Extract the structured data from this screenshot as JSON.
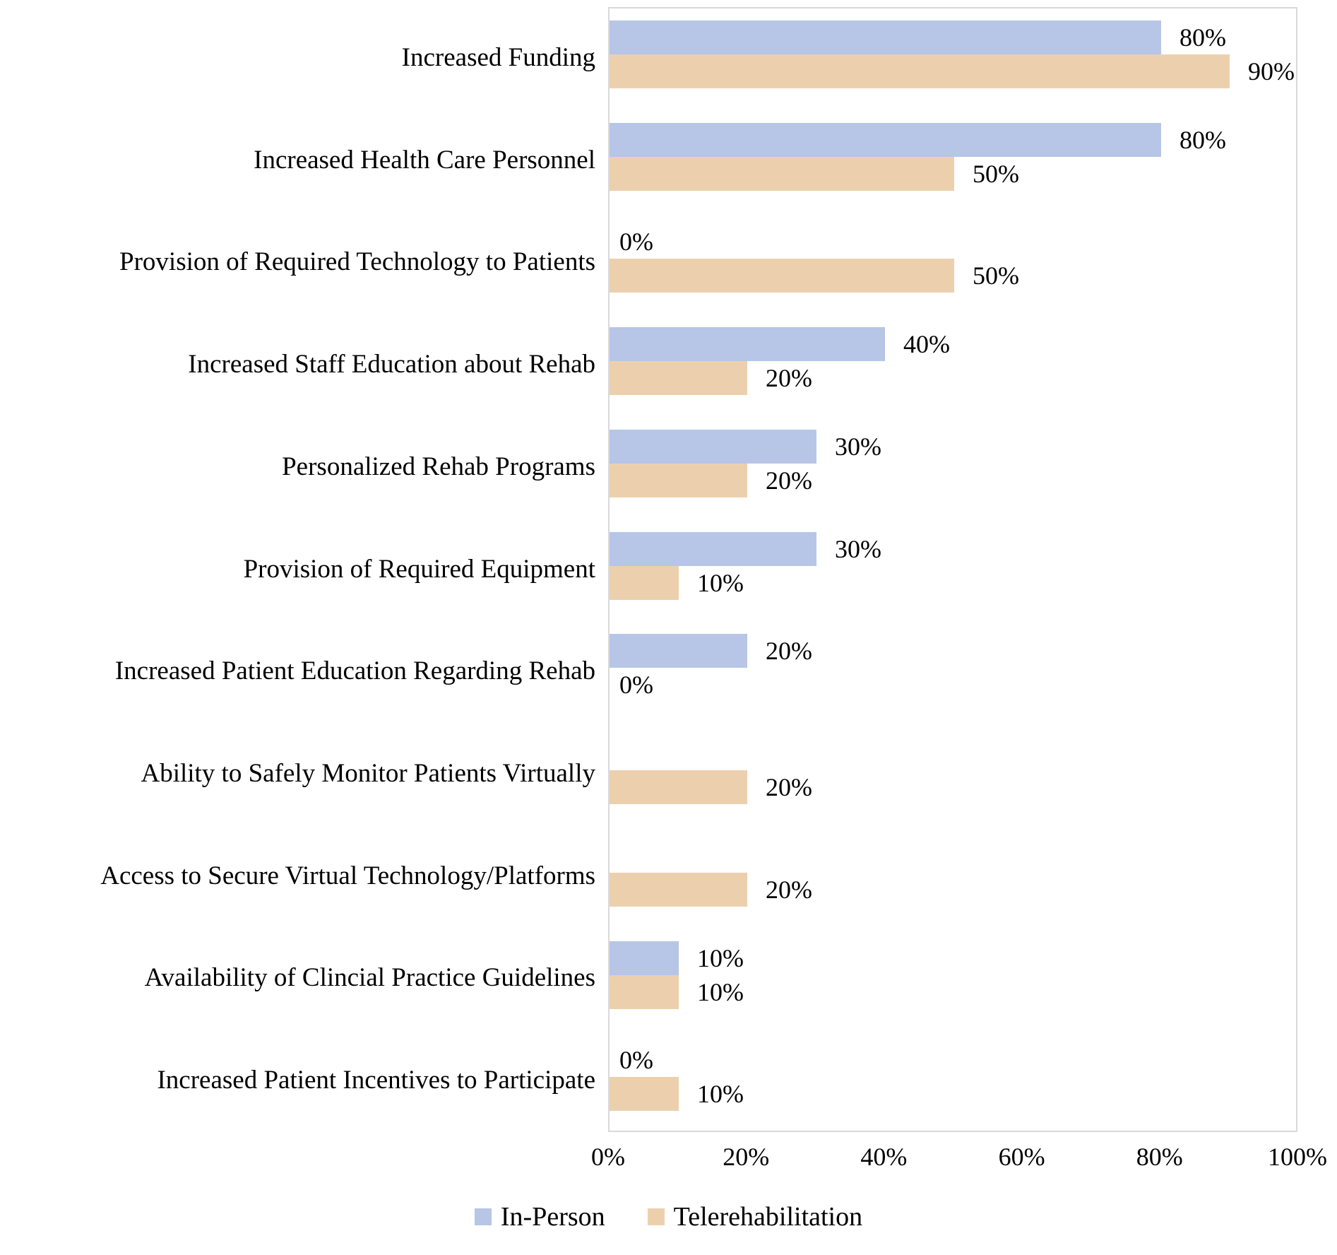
{
  "figure": {
    "background": "#ffffff",
    "plot_border_color": "#d9d9d9"
  },
  "chart_data": {
    "type": "bar",
    "orientation": "horizontal",
    "title": "",
    "xlabel": "",
    "ylabel": "",
    "categories": [
      "Increased Funding",
      "Increased Health Care Personnel",
      "Provision of Required Technology to Patients",
      "Increased Staff Education about Rehab",
      "Personalized Rehab Programs",
      "Provision of Required Equipment",
      "Increased Patient Education Regarding Rehab",
      "Ability to Safely Monitor Patients Virtually",
      "Access to Secure Virtual Technology/Platforms",
      "Availability of Clincial Practice Guidelines",
      "Increased Patient Incentives to Participate"
    ],
    "series": [
      {
        "name": "In-Person",
        "color": "#b7c5e6",
        "values": [
          80,
          80,
          0,
          40,
          30,
          30,
          20,
          null,
          null,
          10,
          0
        ]
      },
      {
        "name": "Telerehabilitation",
        "color": "#ecd0ae",
        "values": [
          90,
          50,
          50,
          20,
          20,
          10,
          0,
          20,
          20,
          10,
          10
        ]
      }
    ],
    "value_label_suffix": "%",
    "x_ticks": [
      "0%",
      "20%",
      "40%",
      "60%",
      "80%",
      "100%"
    ],
    "xlim": [
      0,
      100
    ],
    "grid": false,
    "legend_position": "bottom",
    "missing_value_rule": "null = bar and data label omitted; 0 = '0%' label shown with no bar"
  }
}
